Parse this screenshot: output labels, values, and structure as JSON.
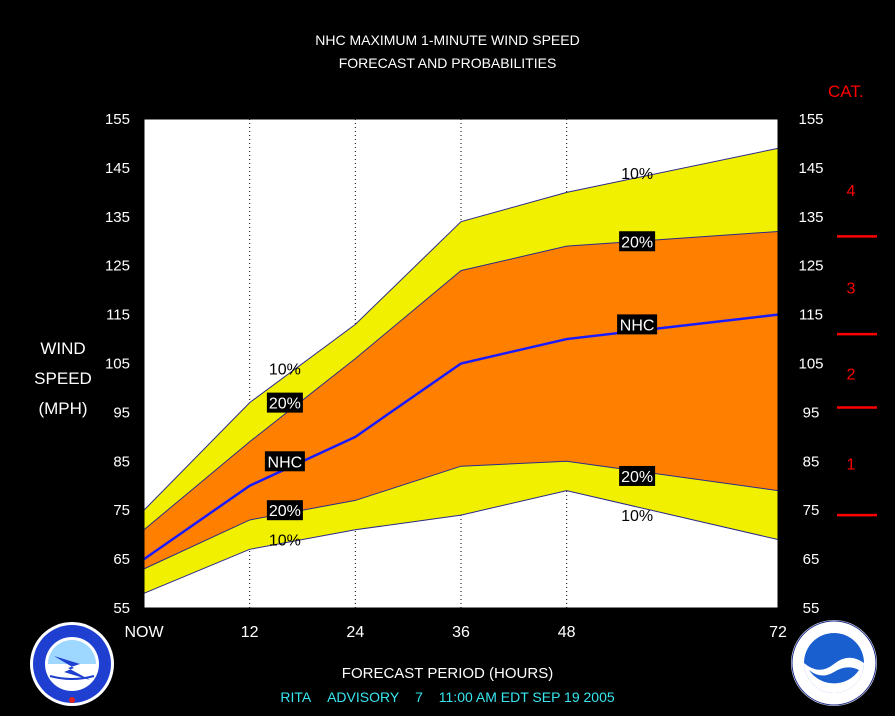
{
  "title_line1": "NHC MAXIMUM 1-MINUTE WIND SPEED",
  "title_line2": "FORECAST AND PROBABILITIES",
  "y_axis_label": [
    "WIND",
    "SPEED",
    "(MPH)"
  ],
  "x_axis_label": "FORECAST PERIOD (HOURS)",
  "category_title": "CAT.",
  "footer": {
    "storm": "RITA",
    "advisory": "ADVISORY",
    "number": "7",
    "time": "11:00 AM EDT SEP 19 2005"
  },
  "colors": {
    "outer_band": "#f0f000",
    "inner_band": "#ff8000",
    "nhc_line": "#1a1aff",
    "category_marks": "#ff0000",
    "footer_text": "#38e6f0"
  },
  "chart_data": {
    "type": "area",
    "x_ticks": [
      0,
      12,
      24,
      36,
      48,
      72
    ],
    "x_tick_labels": [
      "NOW",
      "12",
      "24",
      "36",
      "48",
      "72"
    ],
    "y_ticks": [
      55,
      65,
      75,
      85,
      95,
      105,
      115,
      125,
      135,
      145,
      155
    ],
    "ylim": [
      55,
      155
    ],
    "xlim": [
      0,
      72
    ],
    "grid": "dotted vertical lines at x ticks",
    "x": [
      0,
      12,
      24,
      36,
      48,
      72
    ],
    "series": [
      {
        "band": "outer-upper",
        "values": [
          75,
          97,
          113,
          134,
          140,
          149
        ]
      },
      {
        "band": "inner-upper",
        "values": [
          71,
          89,
          106,
          124,
          129,
          132
        ]
      },
      {
        "band": "nhc",
        "values": [
          65,
          80,
          90,
          105,
          110,
          115
        ]
      },
      {
        "band": "inner-lower",
        "values": [
          63,
          73,
          77,
          84,
          85,
          79
        ]
      },
      {
        "band": "outer-lower",
        "values": [
          58,
          67,
          71,
          74,
          79,
          69
        ]
      }
    ],
    "annotations": [
      {
        "text": "10%",
        "x": 16,
        "y": 104,
        "style": "plain"
      },
      {
        "text": "20%",
        "x": 16,
        "y": 97,
        "style": "boxed"
      },
      {
        "text": "NHC",
        "x": 16,
        "y": 85,
        "style": "boxed"
      },
      {
        "text": "20%",
        "x": 16,
        "y": 75,
        "style": "boxed"
      },
      {
        "text": "10%",
        "x": 16,
        "y": 69,
        "style": "plain"
      },
      {
        "text": "10%",
        "x": 56,
        "y": 144,
        "style": "plain"
      },
      {
        "text": "20%",
        "x": 56,
        "y": 130,
        "style": "boxed"
      },
      {
        "text": "NHC",
        "x": 56,
        "y": 113,
        "style": "boxed"
      },
      {
        "text": "20%",
        "x": 56,
        "y": 82,
        "style": "boxed"
      },
      {
        "text": "10%",
        "x": 56,
        "y": 74,
        "style": "plain"
      }
    ],
    "categories": [
      {
        "label": "1",
        "from": 74,
        "to": 95
      },
      {
        "label": "2",
        "from": 96,
        "to": 110
      },
      {
        "label": "3",
        "from": 111,
        "to": 130
      },
      {
        "label": "4",
        "from": 131,
        "to": 155
      }
    ],
    "category_thresholds": [
      74,
      96,
      111,
      131
    ]
  }
}
